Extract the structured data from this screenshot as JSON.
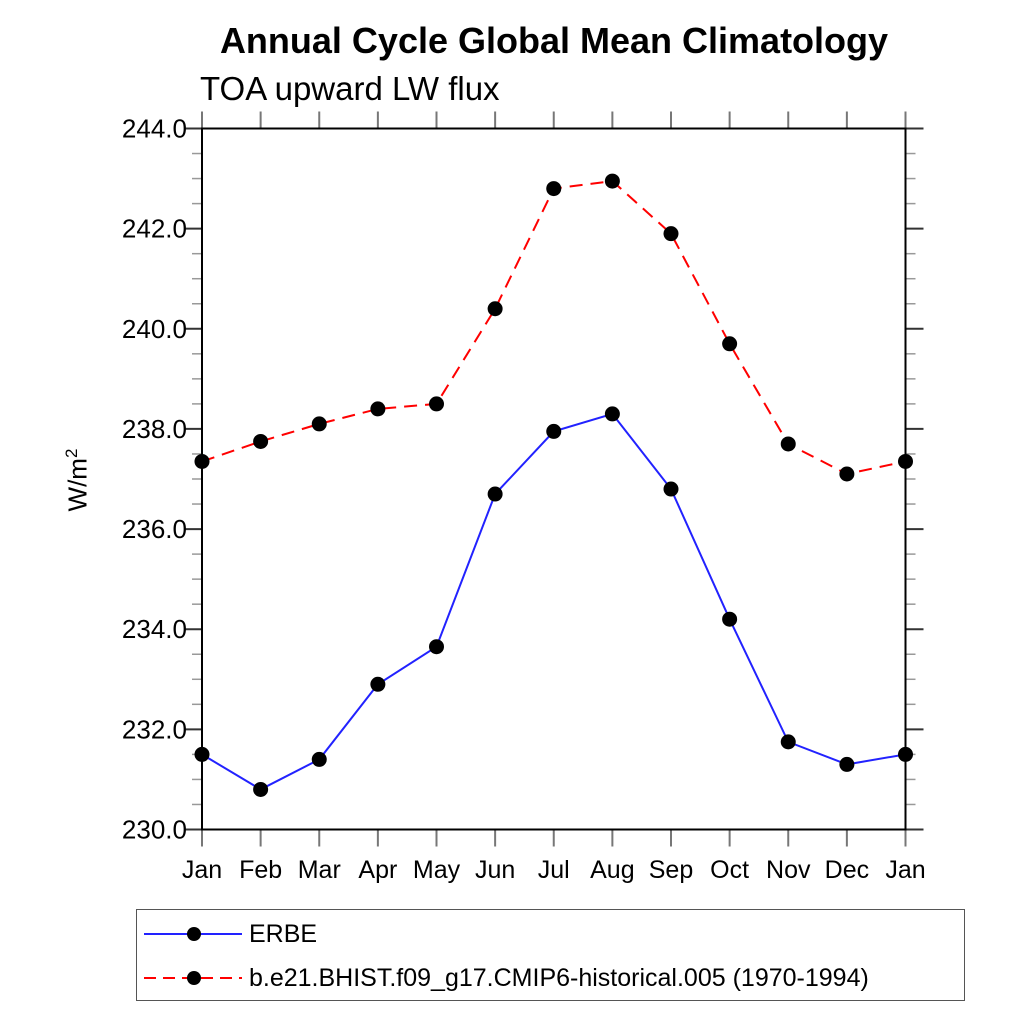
{
  "page": {
    "background": "#ffffff"
  },
  "chart_data": {
    "type": "line",
    "title": "Annual Cycle Global Mean Climatology",
    "subtitle": "TOA upward LW flux",
    "ylabel": "W/m2",
    "ylabel_base": "W/m",
    "ylabel_sup": "2",
    "xlabel": "",
    "x_categories": [
      "Jan",
      "Feb",
      "Mar",
      "Apr",
      "May",
      "Jun",
      "Jul",
      "Aug",
      "Sep",
      "Oct",
      "Nov",
      "Dec",
      "Jan"
    ],
    "ylim": [
      230.0,
      244.0
    ],
    "y_major_step": 2.0,
    "y_minor_step": 0.5,
    "y_tick_labels": [
      "230.0",
      "232.0",
      "234.0",
      "236.0",
      "238.0",
      "240.0",
      "242.0",
      "244.0"
    ],
    "grid": false,
    "legend_position": "bottom-left-box",
    "axis_color": "#000000",
    "marker_color": "#000000",
    "series": [
      {
        "name": "ERBE",
        "color": "#2222ff",
        "style": "solid",
        "marker": "filled-circle",
        "values": [
          231.5,
          230.8,
          231.4,
          232.9,
          233.65,
          236.7,
          237.95,
          238.3,
          236.8,
          234.2,
          231.75,
          231.3,
          231.5
        ]
      },
      {
        "name": "b.e21.BHIST.f09_g17.CMIP6-historical.005 (1970-1994)",
        "color": "#ff0000",
        "style": "dashed",
        "marker": "filled-circle",
        "values": [
          237.35,
          237.75,
          238.1,
          238.4,
          238.5,
          240.4,
          242.8,
          242.95,
          241.9,
          239.7,
          237.7,
          237.1,
          237.35
        ]
      }
    ]
  }
}
